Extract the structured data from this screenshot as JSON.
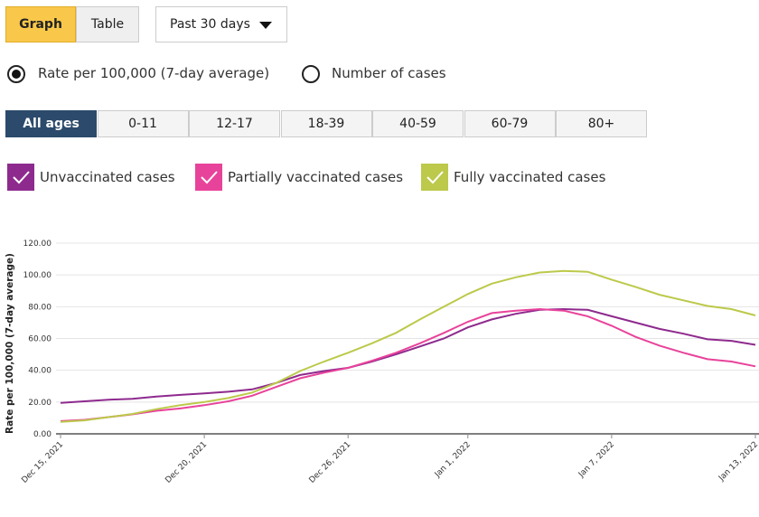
{
  "controls": {
    "view_buttons": [
      "Graph",
      "Table"
    ],
    "period": "Past 30 days",
    "metrics": [
      "Rate per 100,000 (7-day average)",
      "Number of cases"
    ],
    "age_groups": [
      "All ages",
      "0-11",
      "12-17",
      "18-39",
      "40-59",
      "60-79",
      "80+"
    ]
  },
  "chart_data": {
    "type": "line",
    "ylabel": "Rate per 100,000 (7-day average)",
    "categories": [
      "Dec 15, 2021",
      null,
      null,
      null,
      null,
      null,
      "Dec 20, 2021",
      null,
      null,
      null,
      null,
      null,
      "Dec 26, 2021",
      null,
      null,
      null,
      null,
      "Jan 1, 2022",
      null,
      null,
      null,
      null,
      null,
      "Jan 7, 2022",
      null,
      null,
      null,
      null,
      null,
      "Jan 13, 2022"
    ],
    "series": [
      {
        "name": "Unvaccinated cases",
        "color": "#8e2a8e",
        "values": [
          19.5,
          20.5,
          21.5,
          22,
          23.5,
          24.5,
          25.5,
          26.5,
          28,
          32,
          37,
          39.5,
          41.5,
          45.5,
          50,
          55,
          60,
          67,
          72,
          75.5,
          78,
          78.5,
          78,
          74,
          70,
          66,
          63,
          59.5,
          58.5,
          56
        ]
      },
      {
        "name": "Partially vaccinated cases",
        "color": "#e8439b",
        "values": [
          8,
          8.8,
          10.5,
          12.3,
          14.5,
          16,
          18,
          20.5,
          24,
          29.5,
          35,
          38.5,
          41.5,
          46,
          51,
          57,
          63.5,
          70.5,
          76,
          77.5,
          78.5,
          77.5,
          74,
          68,
          61,
          55.5,
          51,
          47,
          45.5,
          42.5
        ]
      },
      {
        "name": "Fully vaccinated cases",
        "color": "#bcc94a",
        "values": [
          7.5,
          8.5,
          10.5,
          12.5,
          15.5,
          18,
          20,
          22.5,
          26,
          32,
          39.5,
          45.5,
          51,
          57,
          63.5,
          72,
          80,
          88,
          94.5,
          98.5,
          101.5,
          102.5,
          102,
          97,
          92.5,
          87.5,
          84,
          80.5,
          78.5,
          74.5
        ]
      }
    ],
    "ylim": [
      0,
      120
    ],
    "yticks": [
      {
        "value": 0,
        "label": "0.00"
      },
      {
        "value": 20,
        "label": "20.00"
      },
      {
        "value": 40,
        "label": "40.00"
      },
      {
        "value": 60,
        "label": "60.00"
      },
      {
        "value": 80,
        "label": "80.00"
      },
      {
        "value": 100,
        "label": "100.00"
      },
      {
        "value": 120,
        "label": "120.00"
      }
    ],
    "grid": true
  }
}
